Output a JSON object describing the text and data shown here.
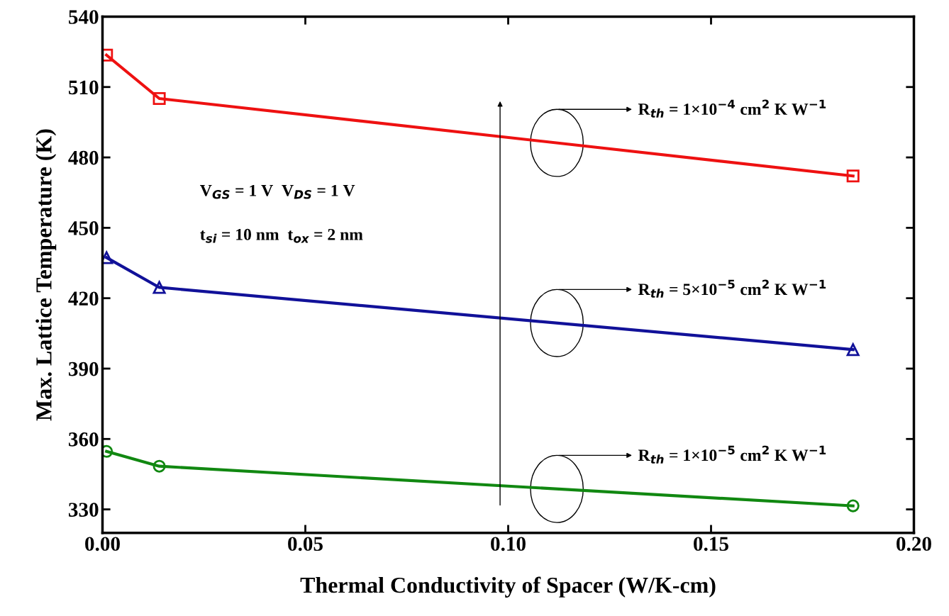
{
  "chart_data": {
    "type": "line",
    "xlabel": "Thermal Conductivity of Spacer (W/K-cm)",
    "ylabel": "Max. Lattice Temperature (K)",
    "x": [
      0.001,
      0.014,
      0.185
    ],
    "series": [
      {
        "name": "R$_{th}$ = 1×10$^{−4}$ cm$^{2}$ K W$^{−1}$",
        "color": "#ee1111",
        "marker": "square",
        "values": [
          523.6,
          505.1,
          472.1
        ]
      },
      {
        "name": "R$_{th}$ = 5×10$^{−5}$ cm$^{2}$ K W$^{−1}$",
        "color": "#111199",
        "marker": "triangle",
        "values": [
          437.3,
          424.6,
          398.1
        ]
      },
      {
        "name": "R$_{th}$ = 1×10$^{−5}$ cm$^{2}$ K W$^{−1}$",
        "color": "#118811",
        "marker": "circle",
        "values": [
          354.7,
          348.4,
          331.5
        ]
      }
    ],
    "annotations": [
      "V$_{GS}$ = 1 V  V$_{DS}$ = 1 V",
      "t$_{si}$ = 10 nm  t$_{ox}$ = 2 nm"
    ],
    "xlim": [
      0,
      0.2
    ],
    "xticks": [
      {
        "value": 0,
        "label": "0.00"
      },
      {
        "value": 0.05,
        "label": "0.05"
      },
      {
        "value": 0.1,
        "label": "0.10"
      },
      {
        "value": 0.15,
        "label": "0.15"
      },
      {
        "value": 0.2,
        "label": "0.20"
      }
    ],
    "ylim": [
      320,
      540
    ],
    "yticks": [
      330,
      360,
      390,
      420,
      450,
      480,
      510,
      540
    ],
    "line_style": "solid",
    "grid": false,
    "legend": false
  }
}
